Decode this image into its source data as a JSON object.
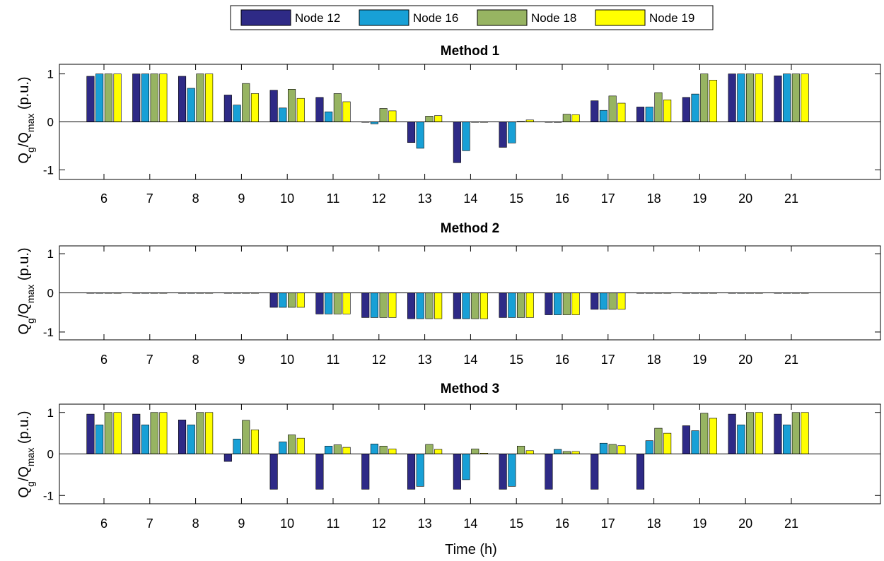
{
  "legend": {
    "placement": "top-center",
    "entries": [
      {
        "label": "Node 12",
        "color": "#2e2a86"
      },
      {
        "label": "Node 16",
        "color": "#18a0d6"
      },
      {
        "label": "Node 18",
        "color": "#97b462"
      },
      {
        "label": "Node 19",
        "color": "#ffff00"
      }
    ]
  },
  "shared": {
    "xlabel": "Time (h)",
    "ylabel_main": "Q",
    "ylabel_sub1": "g",
    "ylabel_mid": "/Q",
    "ylabel_sub2": "max",
    "ylabel_tail": " (p.u.)"
  },
  "chart_data": [
    {
      "type": "bar",
      "title": "Method 1",
      "categories": [
        "6",
        "7",
        "8",
        "9",
        "10",
        "11",
        "12",
        "13",
        "14",
        "15",
        "16",
        "17",
        "18",
        "19",
        "20",
        "21"
      ],
      "ylim": [
        -1.2,
        1.2
      ],
      "yticks": [
        -1,
        0,
        1
      ],
      "grid": false,
      "series": [
        {
          "name": "Node 12",
          "values": [
            0.95,
            1.0,
            0.95,
            0.56,
            0.66,
            0.51,
            0.0,
            -0.43,
            -0.85,
            -0.53,
            0.0,
            0.44,
            0.31,
            0.51,
            1.0,
            0.96
          ]
        },
        {
          "name": "Node 16",
          "values": [
            1.0,
            1.0,
            0.7,
            0.35,
            0.29,
            0.21,
            -0.04,
            -0.55,
            -0.6,
            -0.44,
            -0.01,
            0.24,
            0.31,
            0.58,
            1.0,
            1.0
          ]
        },
        {
          "name": "Node 18",
          "values": [
            1.0,
            1.0,
            1.0,
            0.8,
            0.68,
            0.59,
            0.28,
            0.12,
            0.0,
            0.01,
            0.16,
            0.54,
            0.61,
            1.0,
            1.0,
            1.0
          ]
        },
        {
          "name": "Node 19",
          "values": [
            1.0,
            1.0,
            1.0,
            0.59,
            0.49,
            0.42,
            0.23,
            0.13,
            0.0,
            0.04,
            0.15,
            0.39,
            0.46,
            0.87,
            1.0,
            1.0
          ]
        }
      ]
    },
    {
      "type": "bar",
      "title": "Method 2",
      "categories": [
        "6",
        "7",
        "8",
        "9",
        "10",
        "11",
        "12",
        "13",
        "14",
        "15",
        "16",
        "17",
        "18",
        "19",
        "20",
        "21"
      ],
      "ylim": [
        -1.2,
        1.2
      ],
      "yticks": [
        -1,
        0,
        1
      ],
      "grid": false,
      "series": [
        {
          "name": "Node 12",
          "values": [
            0,
            0,
            0,
            0,
            -0.37,
            -0.54,
            -0.63,
            -0.66,
            -0.66,
            -0.63,
            -0.56,
            -0.42,
            0,
            0,
            0,
            0
          ]
        },
        {
          "name": "Node 16",
          "values": [
            0,
            0,
            0,
            0,
            -0.37,
            -0.54,
            -0.63,
            -0.66,
            -0.66,
            -0.63,
            -0.56,
            -0.42,
            0,
            0,
            0,
            0
          ]
        },
        {
          "name": "Node 18",
          "values": [
            0,
            0,
            0,
            0,
            -0.37,
            -0.54,
            -0.63,
            -0.66,
            -0.66,
            -0.63,
            -0.56,
            -0.42,
            0,
            0,
            0,
            0
          ]
        },
        {
          "name": "Node 19",
          "values": [
            0,
            0,
            0,
            0,
            -0.37,
            -0.54,
            -0.63,
            -0.66,
            -0.66,
            -0.63,
            -0.56,
            -0.42,
            0,
            0,
            0,
            0
          ]
        }
      ]
    },
    {
      "type": "bar",
      "title": "Method 3",
      "categories": [
        "6",
        "7",
        "8",
        "9",
        "10",
        "11",
        "12",
        "13",
        "14",
        "15",
        "16",
        "17",
        "18",
        "19",
        "20",
        "21"
      ],
      "ylim": [
        -1.2,
        1.2
      ],
      "yticks": [
        -1,
        0,
        1
      ],
      "grid": false,
      "series": [
        {
          "name": "Node 12",
          "values": [
            0.96,
            0.96,
            0.82,
            -0.18,
            -0.85,
            -0.85,
            -0.85,
            -0.85,
            -0.85,
            -0.85,
            -0.85,
            -0.85,
            -0.85,
            0.68,
            0.96,
            0.96
          ]
        },
        {
          "name": "Node 16",
          "values": [
            0.7,
            0.7,
            0.7,
            0.36,
            0.29,
            0.19,
            0.24,
            -0.78,
            -0.62,
            -0.78,
            0.11,
            0.26,
            0.32,
            0.56,
            0.7,
            0.7
          ]
        },
        {
          "name": "Node 18",
          "values": [
            1.0,
            1.0,
            1.0,
            0.81,
            0.46,
            0.22,
            0.19,
            0.23,
            0.12,
            0.19,
            0.06,
            0.23,
            0.62,
            0.98,
            1.0,
            1.0
          ]
        },
        {
          "name": "Node 19",
          "values": [
            1.0,
            1.0,
            1.0,
            0.58,
            0.38,
            0.16,
            0.12,
            0.11,
            0.02,
            0.08,
            0.06,
            0.2,
            0.5,
            0.86,
            1.0,
            1.0
          ]
        }
      ]
    }
  ]
}
